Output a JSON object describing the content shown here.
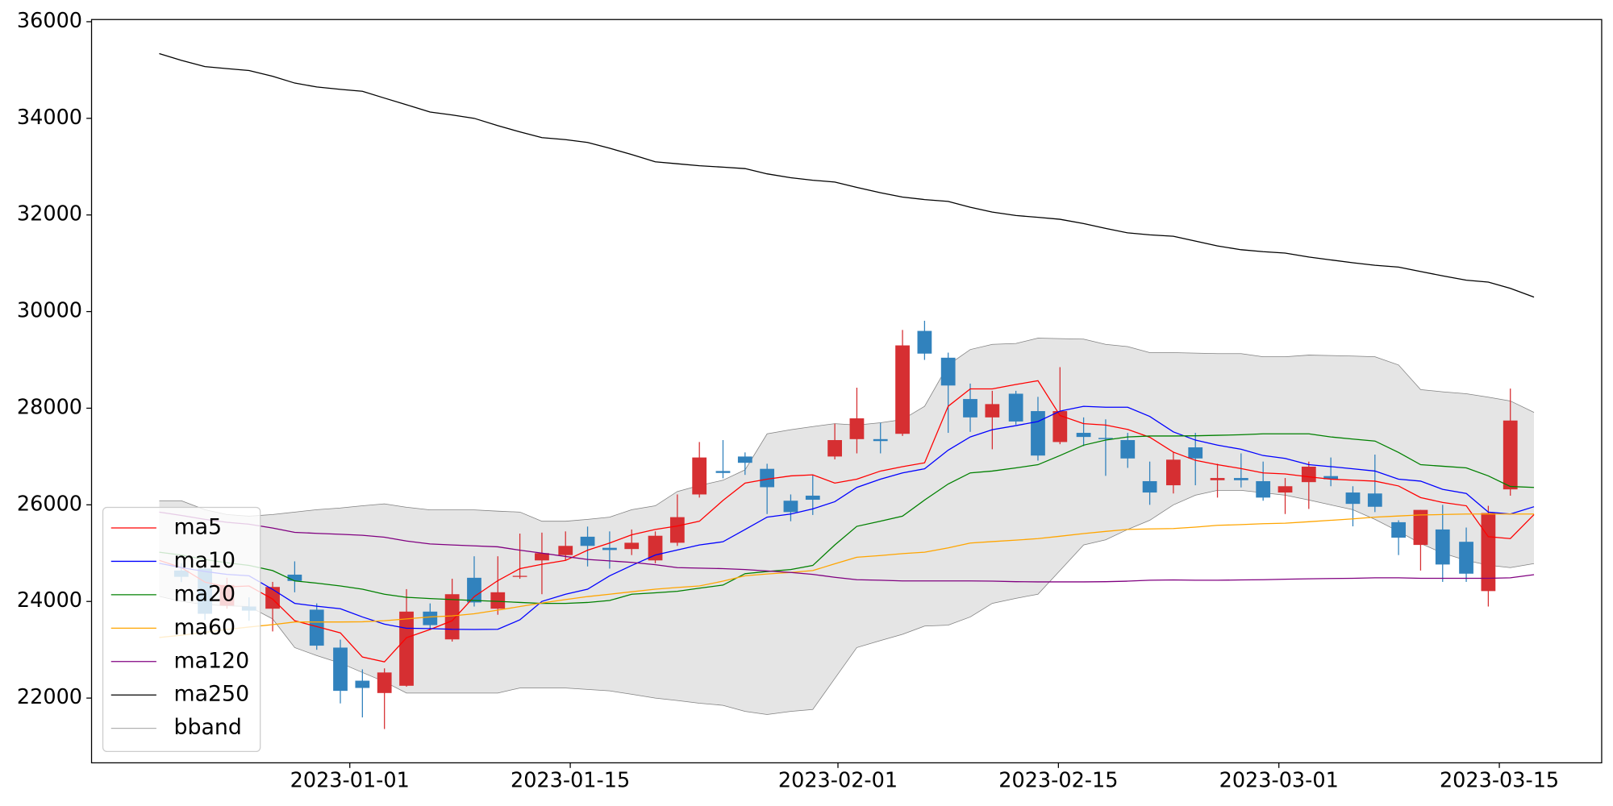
{
  "chart_data": {
    "type": "candlestick",
    "x": [
      -12.1,
      -10.7,
      -9.2,
      -7.8,
      -6.4,
      -4.9,
      -3.5,
      -2.1,
      -0.6,
      0.8,
      2.2,
      3.6,
      5.1,
      6.5,
      7.9,
      9.4,
      10.8,
      12.2,
      13.7,
      15.1,
      16.5,
      17.9,
      19.4,
      20.8,
      22.2,
      23.7,
      25.1,
      26.5,
      28.0,
      29.4,
      30.8,
      32.2,
      33.7,
      35.1,
      36.5,
      38.0,
      39.4,
      40.8,
      42.3,
      43.7,
      45.1,
      46.6,
      48.0,
      49.4,
      50.8,
      52.3,
      53.7,
      55.1,
      56.6,
      58.0,
      59.4,
      60.9,
      62.3,
      63.7,
      65.1,
      66.6,
      68.0,
      69.4,
      70.9,
      72.3,
      73.7,
      75.2
    ],
    "candles": {
      "up_color": "#d62f32",
      "down_color": "#3182bd",
      "open": [
        null,
        24640,
        24680,
        23915,
        23895,
        23850,
        24555,
        23830,
        23045,
        22360,
        22105,
        22255,
        23790,
        23215,
        24490,
        23850,
        24510,
        24850,
        24960,
        25340,
        25110,
        25085,
        24850,
        25215,
        26215,
        26700,
        27000,
        26745,
        26085,
        26190,
        27000,
        27360,
        27360,
        27470,
        29600,
        29045,
        28190,
        27810,
        28300,
        27940,
        27300,
        27490,
        27385,
        27340,
        26490,
        26405,
        27190,
        26510,
        26555,
        26490,
        26255,
        26470,
        26595,
        26255,
        26235,
        25640,
        25170,
        25490,
        25235,
        24215,
        26320,
        null
      ],
      "high": [
        null,
        24790,
        24810,
        24490,
        24085,
        24405,
        24830,
        23960,
        23210,
        22595,
        22615,
        24255,
        23960,
        24470,
        24935,
        24935,
        25405,
        25425,
        25450,
        25550,
        25450,
        25490,
        25450,
        26215,
        27300,
        27340,
        27085,
        26850,
        26215,
        26620,
        27680,
        28425,
        27700,
        29620,
        29810,
        29150,
        28510,
        28360,
        28360,
        28235,
        28850,
        27810,
        27770,
        27490,
        26895,
        27085,
        27490,
        26850,
        27065,
        26895,
        26555,
        26895,
        26980,
        26385,
        27040,
        25680,
        25895,
        26000,
        25530,
        25980,
        28405,
        null
      ],
      "low": [
        null,
        24400,
        23620,
        23850,
        23600,
        23380,
        24190,
        23000,
        21890,
        21600,
        21360,
        22235,
        23445,
        23170,
        23895,
        23725,
        24470,
        24150,
        24850,
        24725,
        24680,
        24960,
        24790,
        25150,
        26150,
        26550,
        26620,
        25810,
        25660,
        25790,
        26940,
        27065,
        27065,
        27425,
        29000,
        27490,
        27510,
        27150,
        27660,
        26915,
        27255,
        27215,
        26600,
        26765,
        26000,
        26235,
        26405,
        26150,
        26360,
        26085,
        25810,
        25915,
        26385,
        25555,
        25850,
        24960,
        24640,
        24405,
        24405,
        23895,
        26190,
        null
      ],
      "close": [
        null,
        24510,
        23745,
        24340,
        23810,
        24300,
        24425,
        23085,
        22150,
        22210,
        22530,
        23790,
        23510,
        24150,
        23980,
        24190,
        24530,
        25000,
        25150,
        25150,
        25065,
        25215,
        25360,
        25745,
        26980,
        26660,
        26870,
        26365,
        25850,
        26105,
        27340,
        27790,
        27320,
        29300,
        29130,
        28470,
        27810,
        28085,
        27725,
        27020,
        27940,
        27405,
        27360,
        26960,
        26255,
        26935,
        26960,
        26555,
        26510,
        26150,
        26385,
        26790,
        26530,
        26020,
        25960,
        25320,
        25895,
        24765,
        24575,
        25830,
        27745,
        null
      ]
    },
    "series": [
      {
        "name": "ma5",
        "color": "#ff0000",
        "values": [
          24850,
          24700,
          24400,
          24300,
          24320,
          24050,
          23600,
          23480,
          23350,
          22850,
          22750,
          23250,
          23420,
          23600,
          24100,
          24430,
          24680,
          24770,
          24850,
          25060,
          25210,
          25380,
          25490,
          25560,
          25660,
          26090,
          26450,
          26530,
          26600,
          26620,
          26450,
          26530,
          26700,
          26790,
          26870,
          28040,
          28400,
          28400,
          28490,
          28570,
          27850,
          27680,
          27650,
          27560,
          27400,
          27090,
          26920,
          26830,
          26750,
          26660,
          26640,
          26580,
          26530,
          26510,
          26490,
          26390,
          26150,
          26050,
          25980,
          25340,
          25300,
          25800
        ]
      },
      {
        "name": "ma10",
        "color": "#0000ff",
        "values": [
          24790,
          24700,
          24620,
          24560,
          24530,
          24250,
          23960,
          23900,
          23850,
          23680,
          23530,
          23445,
          23440,
          23425,
          23420,
          23425,
          23620,
          24000,
          24150,
          24255,
          24530,
          24745,
          24960,
          25065,
          25170,
          25235,
          25490,
          25745,
          25810,
          25915,
          26065,
          26360,
          26530,
          26660,
          26745,
          27130,
          27405,
          27555,
          27640,
          27725,
          27940,
          28040,
          28020,
          28020,
          27830,
          27510,
          27340,
          27235,
          27150,
          27020,
          26960,
          26830,
          26790,
          26745,
          26700,
          26530,
          26490,
          26320,
          26235,
          25850,
          25810,
          25960
        ]
      },
      {
        "name": "ma20",
        "color": "#008000",
        "values": [
          25020,
          24960,
          24870,
          24800,
          24745,
          24640,
          24425,
          24380,
          24320,
          24255,
          24150,
          24085,
          24060,
          24040,
          24020,
          24000,
          23980,
          23960,
          23960,
          23980,
          24020,
          24150,
          24180,
          24210,
          24275,
          24340,
          24575,
          24620,
          24660,
          24745,
          25170,
          25555,
          25660,
          25765,
          26100,
          26430,
          26660,
          26700,
          26765,
          26830,
          27020,
          27235,
          27340,
          27405,
          27425,
          27425,
          27430,
          27440,
          27450,
          27470,
          27470,
          27470,
          27405,
          27360,
          27320,
          27085,
          26830,
          26800,
          26765,
          26600,
          26380,
          26360
        ]
      },
      {
        "name": "ma60",
        "color": "#ffa500",
        "values": [
          23255,
          23300,
          23360,
          23420,
          23470,
          23520,
          23575,
          23575,
          23575,
          23580,
          23600,
          23640,
          23680,
          23700,
          23745,
          23820,
          23895,
          23970,
          24040,
          24100,
          24150,
          24200,
          24255,
          24290,
          24320,
          24420,
          24530,
          24570,
          24600,
          24640,
          24780,
          24915,
          24950,
          24990,
          25020,
          25110,
          25210,
          25240,
          25270,
          25300,
          25350,
          25405,
          25450,
          25490,
          25500,
          25510,
          25540,
          25575,
          25590,
          25610,
          25620,
          25650,
          25680,
          25710,
          25745,
          25770,
          25790,
          25800,
          25810,
          25810,
          25810,
          25810
        ]
      },
      {
        "name": "ma120",
        "color": "#800080",
        "values": [
          25850,
          25780,
          25700,
          25640,
          25600,
          25520,
          25430,
          25410,
          25390,
          25370,
          25330,
          25250,
          25190,
          25170,
          25150,
          25130,
          25060,
          25000,
          24930,
          24870,
          24840,
          24810,
          24760,
          24700,
          24690,
          24680,
          24660,
          24630,
          24600,
          24560,
          24500,
          24450,
          24440,
          24425,
          24425,
          24425,
          24425,
          24420,
          24410,
          24405,
          24405,
          24405,
          24410,
          24420,
          24440,
          24445,
          24440,
          24440,
          24445,
          24450,
          24460,
          24470,
          24475,
          24480,
          24490,
          24490,
          24480,
          24480,
          24480,
          24480,
          24490,
          24555
        ]
      },
      {
        "name": "ma250",
        "color": "#000000",
        "values": [
          35340,
          35200,
          35070,
          35030,
          34990,
          34870,
          34730,
          34650,
          34600,
          34560,
          34420,
          34280,
          34130,
          34070,
          34000,
          33850,
          33720,
          33600,
          33560,
          33500,
          33380,
          33250,
          33100,
          33060,
          33020,
          32990,
          32960,
          32850,
          32770,
          32720,
          32680,
          32570,
          32460,
          32370,
          32320,
          32280,
          32160,
          32060,
          31990,
          31950,
          31910,
          31820,
          31720,
          31630,
          31590,
          31560,
          31460,
          31360,
          31280,
          31240,
          31210,
          31130,
          31070,
          31010,
          30960,
          30920,
          30830,
          30740,
          30650,
          30610,
          30480,
          30300
        ]
      }
    ],
    "band": {
      "name": "bband",
      "color": "#808080",
      "fill": "#e5e5e5",
      "upper": [
        26085,
        26085,
        25900,
        25800,
        25765,
        25800,
        25850,
        25900,
        25935,
        25980,
        26020,
        25950,
        25895,
        25895,
        25895,
        25870,
        25850,
        25660,
        25660,
        25700,
        25745,
        25900,
        25980,
        26275,
        26400,
        26510,
        26725,
        27470,
        27555,
        27620,
        27680,
        27650,
        27700,
        27765,
        28040,
        28895,
        29215,
        29320,
        29340,
        29450,
        29440,
        29430,
        29320,
        29275,
        29150,
        29150,
        29140,
        29130,
        29130,
        29065,
        29065,
        29100,
        29090,
        29080,
        29065,
        28895,
        28385,
        28340,
        28300,
        28230,
        28150,
        27915
      ],
      "lower": [
        24105,
        24000,
        23935,
        23910,
        23895,
        23640,
        23045,
        22880,
        22725,
        22530,
        22340,
        22105,
        22105,
        22105,
        22105,
        22105,
        22210,
        22210,
        22210,
        22180,
        22150,
        22080,
        22000,
        21950,
        21895,
        21850,
        21725,
        21660,
        21725,
        21765,
        22405,
        23045,
        23190,
        23320,
        23490,
        23510,
        23680,
        23960,
        24065,
        24150,
        24640,
        25170,
        25275,
        25490,
        25680,
        26000,
        26200,
        26300,
        26300,
        26250,
        26200,
        26100,
        26000,
        25900,
        25700,
        25450,
        25200,
        25000,
        24850,
        24750,
        24700,
        24785
      ]
    },
    "xlim": [
      -16.4,
      79.5
    ],
    "xticks": [
      {
        "value": 0,
        "label": "2023-01-01"
      },
      {
        "value": 14,
        "label": "2023-01-15"
      },
      {
        "value": 31,
        "label": "2023-02-01"
      },
      {
        "value": 45,
        "label": "2023-02-15"
      },
      {
        "value": 59,
        "label": "2023-03-01"
      },
      {
        "value": 73,
        "label": "2023-03-15"
      }
    ],
    "ylim": [
      20660,
      36045
    ],
    "yticks": [
      22000,
      24000,
      26000,
      28000,
      30000,
      32000,
      34000,
      36000
    ],
    "legend": "lower left"
  }
}
